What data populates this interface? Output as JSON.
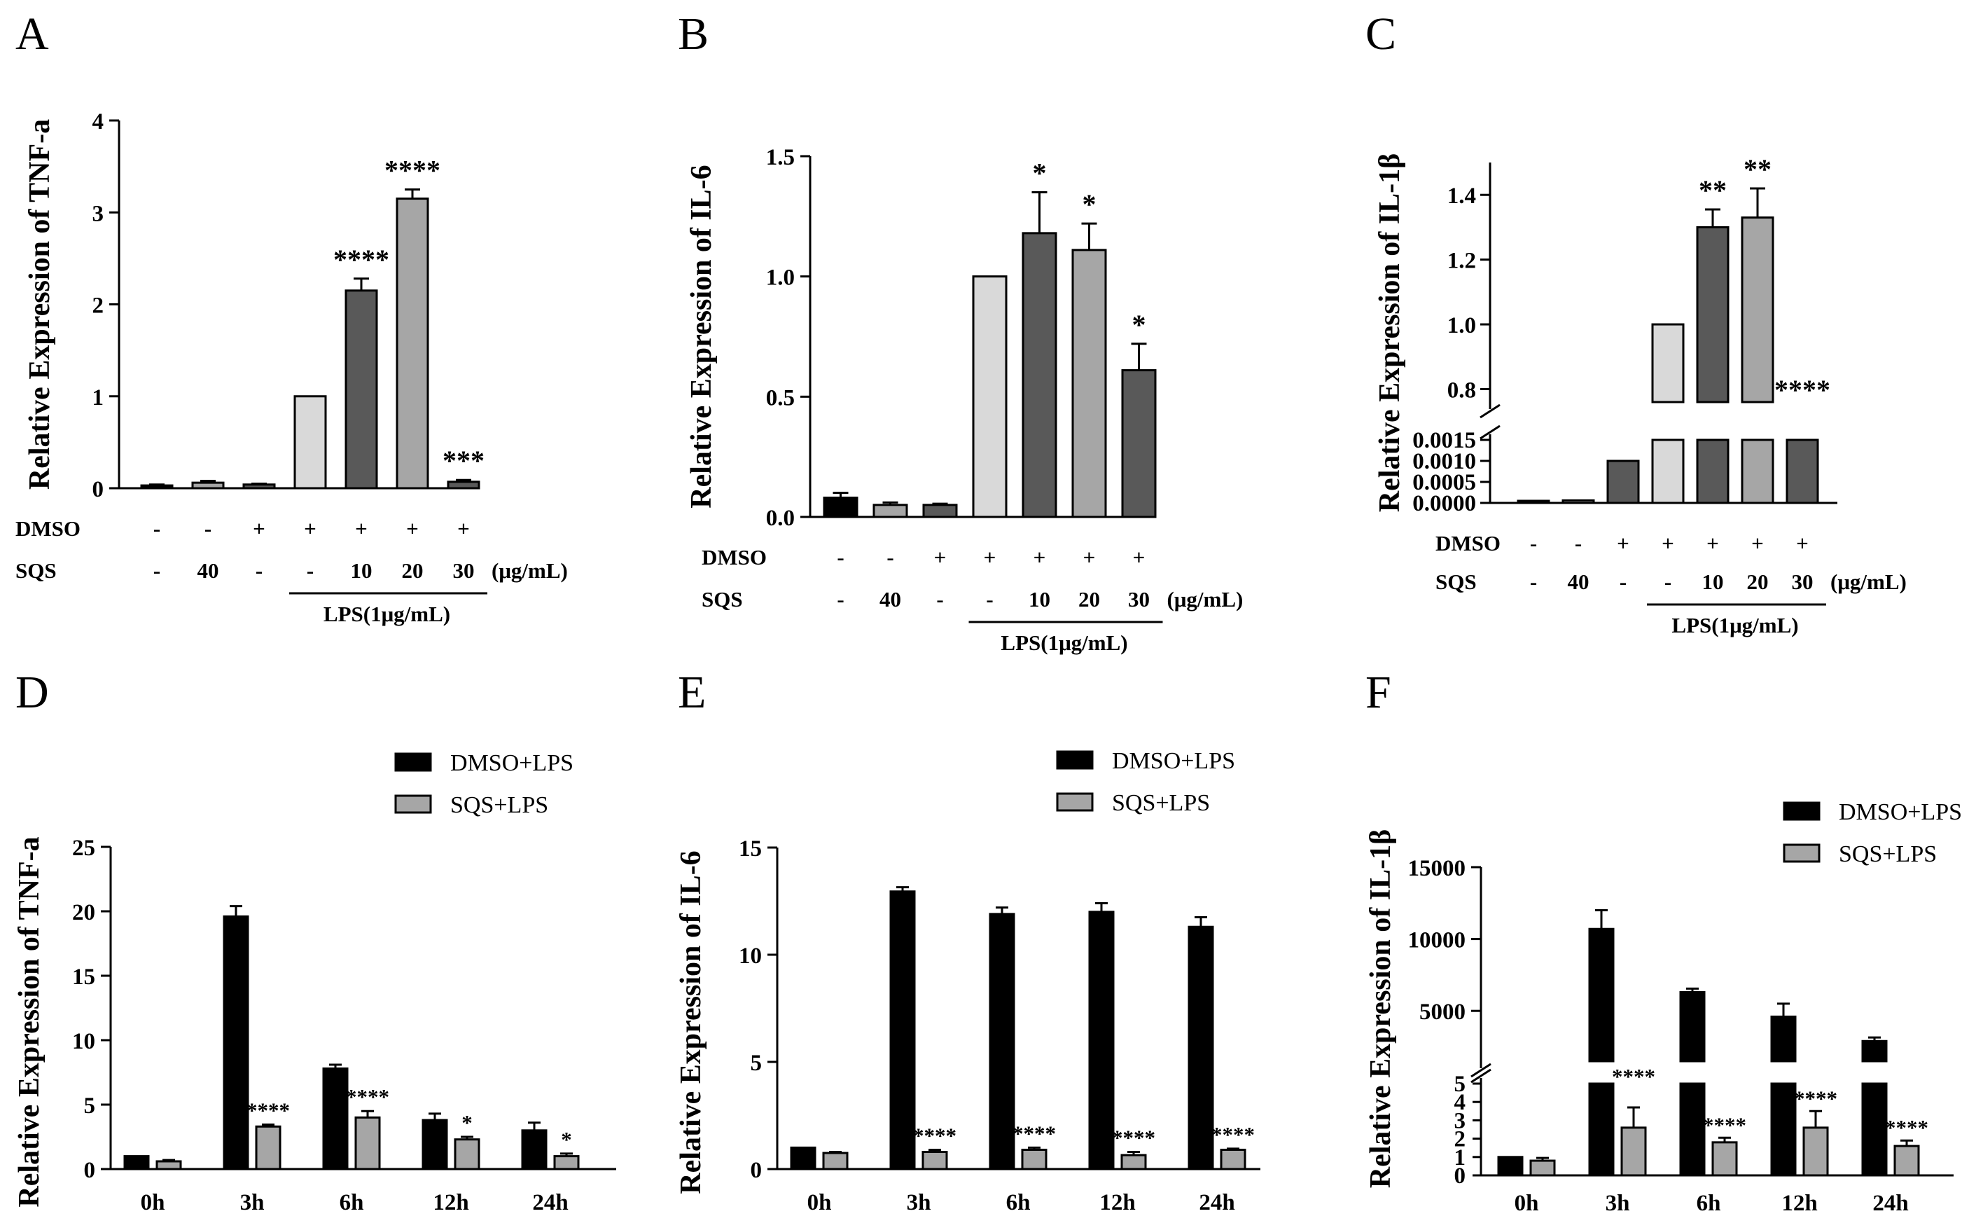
{
  "colors": {
    "black": "#000000",
    "dark_gray": "#595959",
    "mid_gray": "#a6a6a6",
    "light_gray": "#d9d9d9",
    "white": "#ffffff"
  },
  "chart_data": [
    {
      "panel": "A",
      "type": "bar",
      "ylabel": "Relative Expression of TNF-a",
      "ylim": [
        0,
        4
      ],
      "yticks": [
        "0",
        "1",
        "2",
        "3",
        "4"
      ],
      "categories": [
        "1",
        "2",
        "3",
        "4",
        "5",
        "6",
        "7"
      ],
      "values": [
        0.03,
        0.06,
        0.04,
        1.0,
        2.15,
        3.15,
        0.07
      ],
      "errors": [
        0.01,
        0.02,
        0.01,
        0.0,
        0.13,
        0.1,
        0.02
      ],
      "bar_colors": [
        "#000000",
        "#a6a6a6",
        "#595959",
        "#d9d9d9",
        "#595959",
        "#a6a6a6",
        "#595959"
      ],
      "significance": [
        "",
        "",
        "",
        "",
        "****",
        "****",
        "***"
      ],
      "rows": [
        {
          "label": "DMSO",
          "values": [
            "-",
            "-",
            "+",
            "+",
            "+",
            "+",
            "+"
          ]
        },
        {
          "label": "SQS",
          "values": [
            "-",
            "40",
            "-",
            "-",
            "10",
            "20",
            "30"
          ]
        }
      ],
      "unit": "(μg/mL)",
      "group_label": "LPS(1μg/mL)"
    },
    {
      "panel": "B",
      "type": "bar",
      "ylabel": "Relative Expression of IL-6",
      "ylim": [
        0,
        1.5
      ],
      "yticks": [
        "0.0",
        "0.5",
        "1.0",
        "1.5"
      ],
      "categories": [
        "1",
        "2",
        "3",
        "4",
        "5",
        "6",
        "7"
      ],
      "values": [
        0.08,
        0.05,
        0.05,
        1.0,
        1.18,
        1.11,
        0.61
      ],
      "errors": [
        0.02,
        0.01,
        0.005,
        0.0,
        0.17,
        0.11,
        0.11
      ],
      "bar_colors": [
        "#000000",
        "#a6a6a6",
        "#595959",
        "#d9d9d9",
        "#595959",
        "#a6a6a6",
        "#595959"
      ],
      "significance": [
        "",
        "",
        "",
        "",
        "*",
        "*",
        "*"
      ],
      "rows": [
        {
          "label": "DMSO",
          "values": [
            "-",
            "-",
            "+",
            "+",
            "+",
            "+",
            "+"
          ]
        },
        {
          "label": "SQS",
          "values": [
            "-",
            "40",
            "-",
            "-",
            "10",
            "20",
            "30"
          ]
        }
      ],
      "unit": "(μg/mL)",
      "group_label": "LPS(1μg/mL)"
    },
    {
      "panel": "C",
      "type": "bar",
      "ylabel": "Relative Expression of IL-1β",
      "axis_break": true,
      "ylim_lower": [
        0,
        0.0015
      ],
      "ylim_upper": [
        0.76,
        1.5
      ],
      "yticks_lower": [
        "0.0000",
        "0.0005",
        "0.0010",
        "0.0015"
      ],
      "yticks_upper": [
        "0.8",
        "1.0",
        "1.2",
        "1.4"
      ],
      "categories": [
        "1",
        "2",
        "3",
        "4",
        "5",
        "6",
        "7"
      ],
      "values": [
        3e-05,
        6e-05,
        0.001,
        1.0,
        1.3,
        1.33,
        0.76
      ],
      "errors": [
        0.0,
        0.0,
        0.0,
        0.0,
        0.055,
        0.09,
        0.0
      ],
      "bar_colors": [
        "#000000",
        "#a6a6a6",
        "#595959",
        "#d9d9d9",
        "#595959",
        "#a6a6a6",
        "#595959"
      ],
      "significance": [
        "",
        "",
        "",
        "",
        "**",
        "**",
        "****"
      ],
      "rows": [
        {
          "label": "DMSO",
          "values": [
            "-",
            "-",
            "+",
            "+",
            "+",
            "+",
            "+"
          ]
        },
        {
          "label": "SQS",
          "values": [
            "-",
            "40",
            "-",
            "-",
            "10",
            "20",
            "30"
          ]
        }
      ],
      "unit": "(μg/mL)",
      "group_label": "LPS(1μg/mL)"
    },
    {
      "panel": "D",
      "type": "bar",
      "ylabel": "Relative Expression of TNF-a",
      "ylim": [
        0,
        25
      ],
      "yticks": [
        "0",
        "5",
        "10",
        "15",
        "20",
        "25"
      ],
      "categories": [
        "0h",
        "3h",
        "6h",
        "12h",
        "24h"
      ],
      "series": [
        {
          "name": "DMSO+LPS",
          "values": [
            1.0,
            19.6,
            7.8,
            3.8,
            3.0
          ],
          "errors": [
            0.0,
            0.8,
            0.3,
            0.5,
            0.6
          ]
        },
        {
          "name": "SQS+LPS",
          "values": [
            0.6,
            3.3,
            4.0,
            2.3,
            1.0
          ],
          "errors": [
            0.1,
            0.15,
            0.5,
            0.2,
            0.2
          ]
        }
      ],
      "significance": [
        "",
        "****",
        "****",
        "*",
        "*"
      ]
    },
    {
      "panel": "E",
      "type": "bar",
      "ylabel": "Relative Expression of IL-6",
      "ylim": [
        0,
        15
      ],
      "yticks": [
        "0",
        "5",
        "10",
        "15"
      ],
      "categories": [
        "0h",
        "3h",
        "6h",
        "12h",
        "24h"
      ],
      "series": [
        {
          "name": "DMSO+LPS",
          "values": [
            1.0,
            12.95,
            11.9,
            12.0,
            11.3
          ],
          "errors": [
            0.0,
            0.2,
            0.3,
            0.4,
            0.45
          ]
        },
        {
          "name": "SQS+LPS",
          "values": [
            0.75,
            0.8,
            0.9,
            0.65,
            0.9
          ],
          "errors": [
            0.05,
            0.1,
            0.1,
            0.15,
            0.05
          ]
        }
      ],
      "significance": [
        "",
        "****",
        "****",
        "****",
        "****"
      ]
    },
    {
      "panel": "F",
      "type": "bar",
      "ylabel": "Relative Expression of IL-1β",
      "axis_break": true,
      "ylim_lower": [
        0,
        5
      ],
      "ylim_upper": [
        1500,
        15000
      ],
      "yticks_lower": [
        "0",
        "1",
        "2",
        "3",
        "4",
        "5"
      ],
      "yticks_upper": [
        "5000",
        "10000",
        "15000"
      ],
      "categories": [
        "0h",
        "3h",
        "6h",
        "12h",
        "24h"
      ],
      "series": [
        {
          "name": "DMSO+LPS",
          "values": [
            1.0,
            10700,
            6300,
            4600,
            2900
          ],
          "errors": [
            0.0,
            1300,
            250,
            900,
            250
          ]
        },
        {
          "name": "SQS+LPS",
          "values": [
            0.8,
            2.6,
            1.8,
            2.6,
            1.6
          ],
          "errors": [
            0.15,
            1.1,
            0.25,
            0.9,
            0.3
          ]
        }
      ],
      "significance": [
        "",
        "****",
        "****",
        "****",
        "****"
      ]
    }
  ],
  "panel_labels": [
    "A",
    "B",
    "C",
    "D",
    "E",
    "F"
  ]
}
